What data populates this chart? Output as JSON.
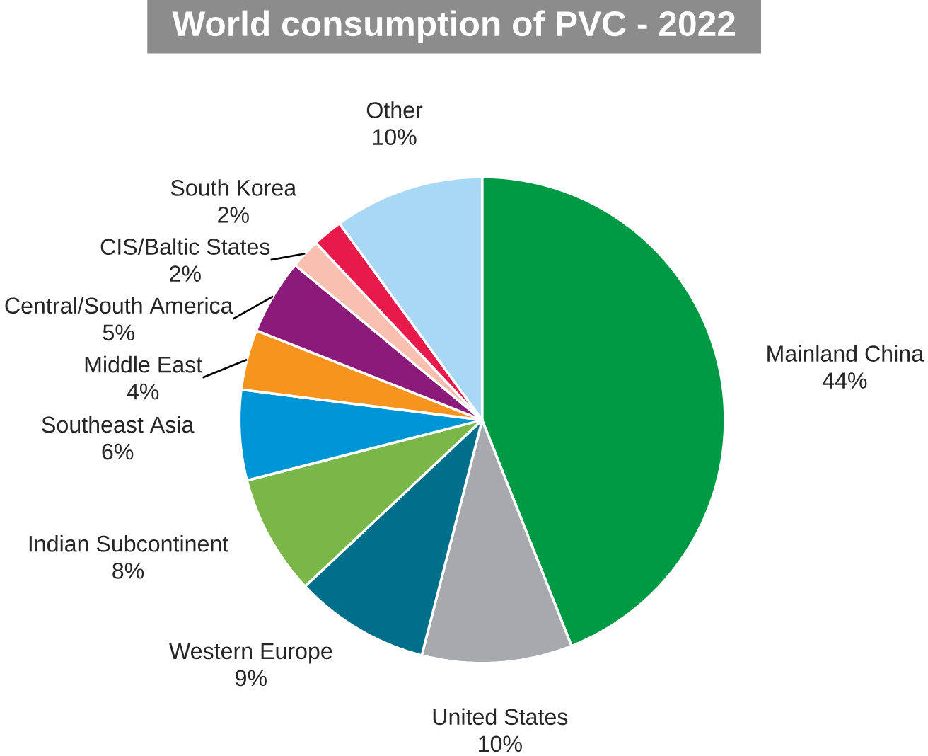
{
  "chart_data": {
    "type": "pie",
    "title": "World consumption of PVC - 2022",
    "categories": [
      "Mainland China",
      "United States",
      "Western Europe",
      "Indian Subcontinent",
      "Southeast Asia",
      "Middle East",
      "Central/South America",
      "CIS/Baltic States",
      "South Korea",
      "Other"
    ],
    "values": [
      44,
      10,
      9,
      8,
      6,
      4,
      5,
      2,
      2,
      10
    ],
    "value_labels": [
      "44%",
      "10%",
      "9%",
      "8%",
      "6%",
      "4%",
      "5%",
      "2%",
      "2%",
      "10%"
    ],
    "colors": [
      "#009a44",
      "#a7a9ac",
      "#00708a",
      "#7ab648",
      "#0096d6",
      "#f7941d",
      "#8b1a7a",
      "#f9c0b0",
      "#e8194b",
      "#a8d8f5"
    ]
  }
}
